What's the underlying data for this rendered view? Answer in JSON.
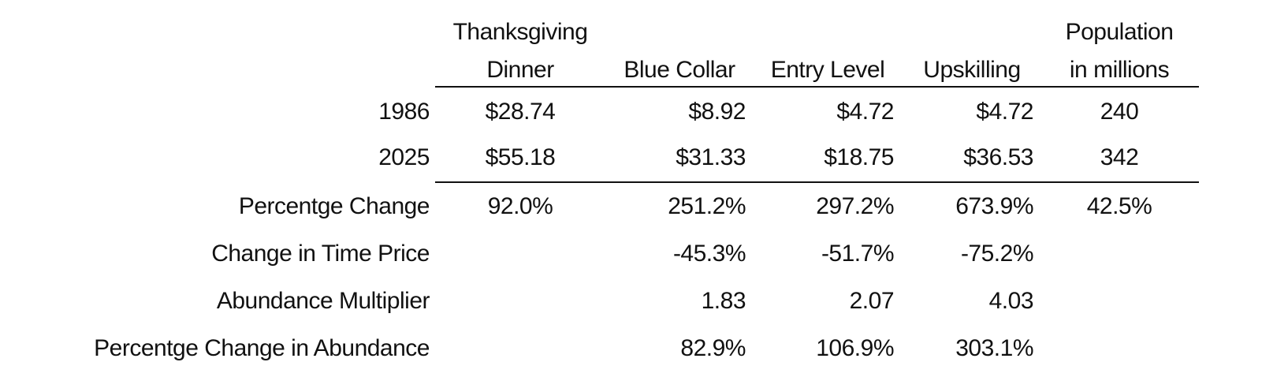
{
  "table": {
    "header": [
      [
        "Thanksgiving",
        "Dinner"
      ],
      [
        "Blue Collar"
      ],
      [
        "Entry Level"
      ],
      [
        "Upskilling"
      ],
      [
        "Population",
        "in millions"
      ]
    ],
    "rows": [
      {
        "label": "1986",
        "cells": [
          "$28.74",
          "$8.92",
          "$4.72",
          "$4.72",
          "240"
        ]
      },
      {
        "label": "2025",
        "cells": [
          "$55.18",
          "$31.33",
          "$18.75",
          "$36.53",
          "342"
        ]
      },
      {
        "label": "Percentge Change",
        "cells": [
          "92.0%",
          "251.2%",
          "297.2%",
          "673.9%",
          "42.5%"
        ]
      },
      {
        "label": "Change in Time Price",
        "cells": [
          null,
          "-45.3%",
          "-51.7%",
          "-75.2%",
          null
        ]
      },
      {
        "label": "Abundance Multiplier",
        "cells": [
          null,
          "1.83",
          "2.07",
          "4.03",
          null
        ]
      },
      {
        "label": "Percentge Change in Abundance",
        "cells": [
          null,
          "82.9%",
          "106.9%",
          "303.1%",
          null
        ]
      }
    ]
  }
}
